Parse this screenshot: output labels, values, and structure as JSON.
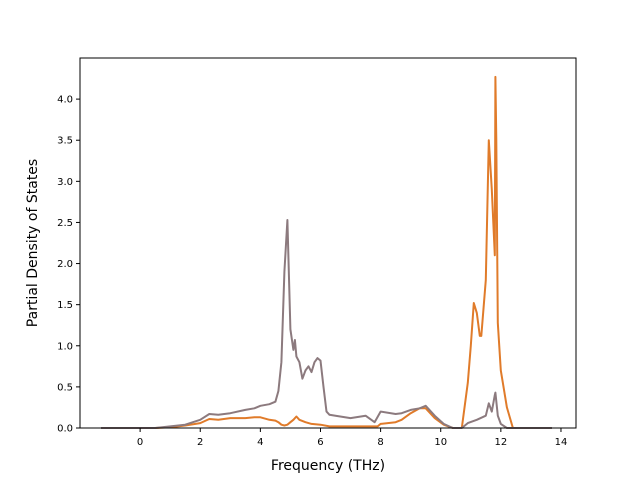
{
  "chart_data": {
    "type": "line",
    "xlabel": "Frequency (THz)",
    "ylabel": "Partial Density of States",
    "xlim": [
      -2.0,
      14.5
    ],
    "ylim": [
      0.0,
      4.5
    ],
    "xticks": [
      0,
      2,
      4,
      6,
      8,
      10,
      12,
      14
    ],
    "yticks": [
      0.0,
      0.5,
      1.0,
      1.5,
      2.0,
      2.5,
      3.0,
      3.5,
      4.0
    ],
    "xtick_labels": [
      "0",
      "2",
      "4",
      "6",
      "8",
      "10",
      "12",
      "14"
    ],
    "ytick_labels": [
      "0.0",
      "0.5",
      "1.0",
      "1.5",
      "2.0",
      "2.5",
      "3.0",
      "3.5",
      "4.0"
    ],
    "grid": false,
    "series": [
      {
        "color": "#e07b2a",
        "x": [
          -1.3,
          0.5,
          1.0,
          1.5,
          2.0,
          2.3,
          2.6,
          3.0,
          3.5,
          3.8,
          4.0,
          4.3,
          4.5,
          4.6,
          4.7,
          4.8,
          4.9,
          5.0,
          5.1,
          5.2,
          5.3,
          5.5,
          5.7,
          6.0,
          6.3,
          7.0,
          7.5,
          7.9,
          8.0,
          8.5,
          8.7,
          9.0,
          9.3,
          9.5,
          9.8,
          10.1,
          10.4,
          10.7,
          10.9,
          11.0,
          11.1,
          11.2,
          11.3,
          11.35,
          11.5,
          11.6,
          11.7,
          11.8,
          11.82,
          11.85,
          11.9,
          12.0,
          12.2,
          12.4,
          13.7
        ],
        "values": [
          0.0,
          0.0,
          0.01,
          0.03,
          0.06,
          0.11,
          0.1,
          0.12,
          0.12,
          0.13,
          0.13,
          0.1,
          0.09,
          0.07,
          0.04,
          0.03,
          0.04,
          0.07,
          0.1,
          0.14,
          0.1,
          0.07,
          0.05,
          0.04,
          0.02,
          0.02,
          0.02,
          0.02,
          0.05,
          0.07,
          0.1,
          0.18,
          0.24,
          0.24,
          0.12,
          0.04,
          0.0,
          0.0,
          0.55,
          1.0,
          1.52,
          1.4,
          1.12,
          1.12,
          1.8,
          3.5,
          2.9,
          2.1,
          4.27,
          3.5,
          1.28,
          0.7,
          0.25,
          0.0,
          0.0
        ]
      },
      {
        "color": "#8c7a7e",
        "x": [
          -1.3,
          0.5,
          1.0,
          1.5,
          2.0,
          2.3,
          2.6,
          3.0,
          3.5,
          3.8,
          4.0,
          4.3,
          4.5,
          4.6,
          4.7,
          4.8,
          4.9,
          5.0,
          5.1,
          5.15,
          5.2,
          5.3,
          5.4,
          5.5,
          5.6,
          5.7,
          5.8,
          5.9,
          6.0,
          6.1,
          6.2,
          6.3,
          6.5,
          7.0,
          7.5,
          7.8,
          8.0,
          8.5,
          8.7,
          9.0,
          9.3,
          9.5,
          9.8,
          10.1,
          10.4,
          10.7,
          10.9,
          11.2,
          11.5,
          11.6,
          11.7,
          11.8,
          11.82,
          11.9,
          12.0,
          12.2,
          12.4,
          13.7
        ],
        "values": [
          0.0,
          0.0,
          0.02,
          0.04,
          0.1,
          0.17,
          0.16,
          0.18,
          0.22,
          0.24,
          0.27,
          0.29,
          0.32,
          0.45,
          0.8,
          1.9,
          2.53,
          1.2,
          0.95,
          1.07,
          0.87,
          0.8,
          0.6,
          0.7,
          0.75,
          0.68,
          0.8,
          0.85,
          0.82,
          0.5,
          0.2,
          0.16,
          0.15,
          0.12,
          0.15,
          0.07,
          0.2,
          0.17,
          0.18,
          0.22,
          0.24,
          0.27,
          0.15,
          0.05,
          0.0,
          0.0,
          0.06,
          0.1,
          0.15,
          0.3,
          0.2,
          0.4,
          0.43,
          0.15,
          0.05,
          0.0,
          0.0,
          0.0
        ]
      }
    ]
  }
}
